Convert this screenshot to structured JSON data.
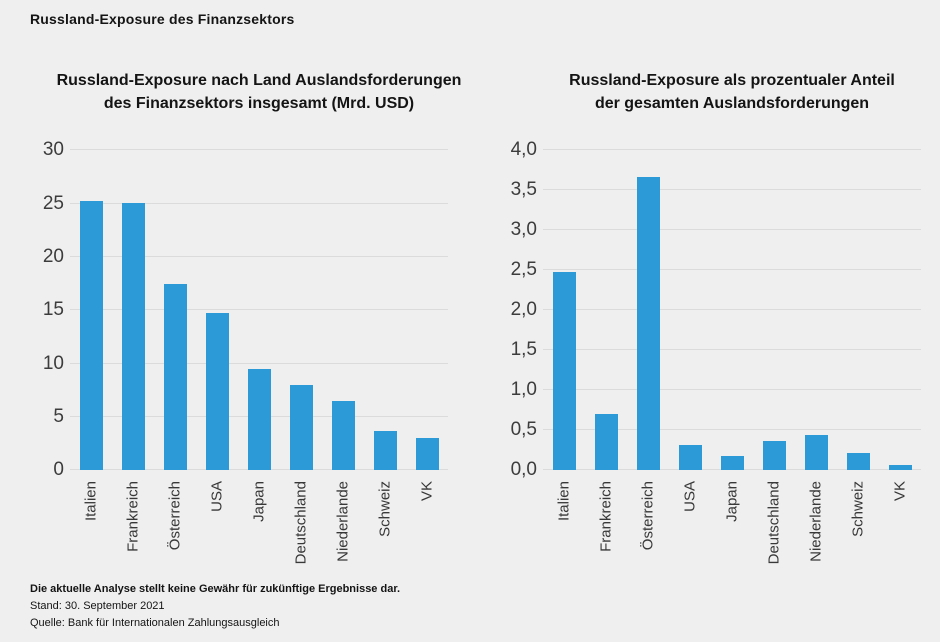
{
  "page": {
    "title": "Russland-Exposure des Finanzsektors",
    "background_color": "#efefef",
    "bar_color": "#2b9ad6",
    "gridline_color": "#dbdbdb"
  },
  "footer": {
    "disclaimer": "Die aktuelle Analyse stellt keine Gewähr für zukünftige Ergebnisse dar.",
    "stand": "Stand: 30. September 2021",
    "quelle": "Quelle: Bank für Internationalen Zahlungsausgleich"
  },
  "chart_data": [
    {
      "type": "bar",
      "title": "Russland-Exposure nach Land Auslandsforderungen des Finanzsektors insgesamt (Mrd. USD)",
      "title_lines": [
        "Russland-Exposure nach Land Auslandsforderungen",
        "des Finanzsektors insgesamt (Mrd. USD)"
      ],
      "categories": [
        "Italien",
        "Frankreich",
        "Österreich",
        "USA",
        "Japan",
        "Deutschland",
        "Niederlande",
        "Schweiz",
        "VK"
      ],
      "values": [
        25.2,
        25.1,
        17.5,
        14.7,
        9.5,
        8.0,
        6.5,
        3.7,
        3.0
      ],
      "xlabel": "",
      "ylabel": "",
      "ylim": [
        0,
        30
      ],
      "yticks": [
        0,
        5,
        10,
        15,
        20,
        25,
        30
      ],
      "ytick_labels": [
        "0",
        "5",
        "10",
        "15",
        "20",
        "25",
        "30"
      ],
      "grid": true,
      "legend": "none",
      "bar_color": "#2b9ad6"
    },
    {
      "type": "bar",
      "title": "Russland-Exposure als prozentualer Anteil der gesamten Auslandsforderungen",
      "title_lines": [
        "Russland-Exposure als prozentualer Anteil",
        "der gesamten Auslandsforderungen"
      ],
      "categories": [
        "Italien",
        "Frankreich",
        "Österreich",
        "USA",
        "Japan",
        "Deutschland",
        "Niederlande",
        "Schweiz",
        "VK"
      ],
      "values": [
        2.48,
        0.7,
        3.67,
        0.32,
        0.18,
        0.37,
        0.44,
        0.22,
        0.06
      ],
      "xlabel": "",
      "ylabel": "",
      "ylim": [
        0,
        4.0
      ],
      "yticks": [
        0,
        0.5,
        1.0,
        1.5,
        2.0,
        2.5,
        3.0,
        3.5,
        4.0
      ],
      "ytick_labels": [
        "0,0",
        "0,5",
        "1,0",
        "1,5",
        "2,0",
        "2,5",
        "3,0",
        "3,5",
        "4,0"
      ],
      "grid": true,
      "legend": "none",
      "bar_color": "#2b9ad6"
    }
  ]
}
